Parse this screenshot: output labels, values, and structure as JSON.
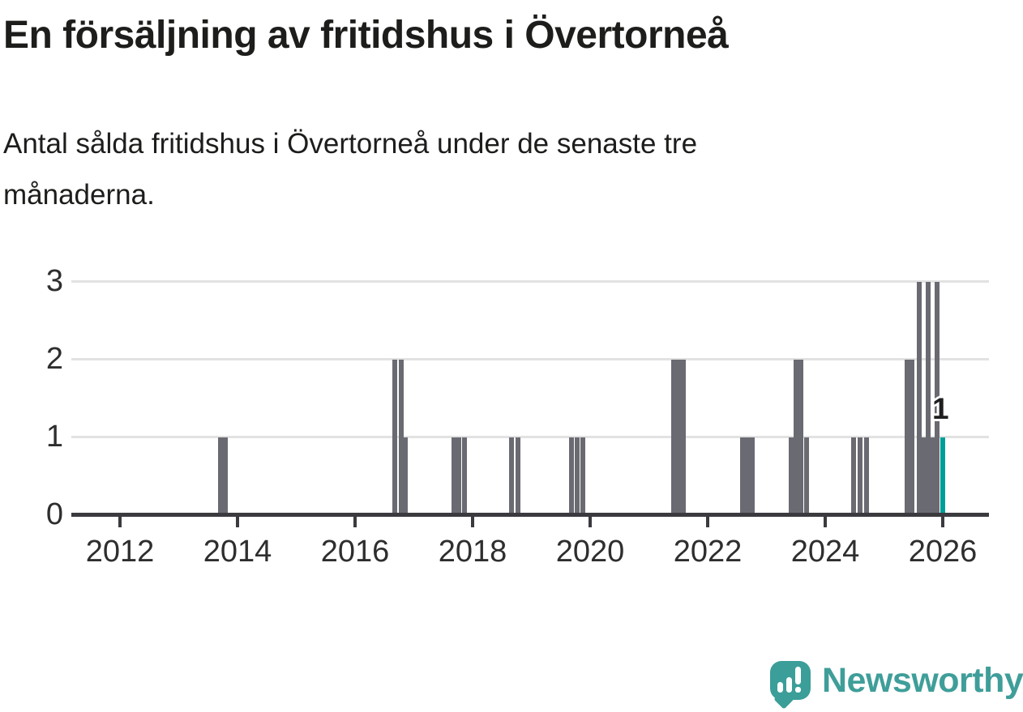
{
  "header": {
    "title": "En försäljning av fritidshus i Övertorneå",
    "subtitle": "Antal sålda fritidshus i Övertorneå under de senaste tre månaderna."
  },
  "chart_data": {
    "type": "bar",
    "title": "En försäljning av fritidshus i Övertorneå",
    "subtitle": "Antal sålda fritidshus i Övertorneå under de senaste tre månaderna.",
    "xlabel": "",
    "ylabel": "",
    "x_axis": {
      "range": [
        2011.17,
        2026.79
      ],
      "tick_labels": [
        "2012",
        "2014",
        "2016",
        "2018",
        "2020",
        "2022",
        "2024",
        "2026"
      ],
      "tick_values": [
        2012,
        2014,
        2016,
        2018,
        2020,
        2022,
        2024,
        2026
      ]
    },
    "y_axis": {
      "range": [
        0,
        3
      ],
      "tick_labels": [
        "0",
        "1",
        "2",
        "3"
      ],
      "tick_values": [
        0,
        1,
        2,
        3
      ],
      "gridline_values": [
        1,
        2,
        3
      ]
    },
    "grid": "horizontal-only",
    "legend": "none",
    "bar_color": "#6a6a72",
    "highlight_color": "#009e98",
    "bars": [
      {
        "x": 2013.71,
        "v": 1
      },
      {
        "x": 2013.8,
        "v": 1
      },
      {
        "x": 2016.68,
        "v": 2
      },
      {
        "x": 2016.78,
        "v": 2
      },
      {
        "x": 2016.86,
        "v": 1
      },
      {
        "x": 2017.68,
        "v": 1
      },
      {
        "x": 2017.77,
        "v": 1
      },
      {
        "x": 2017.86,
        "v": 1
      },
      {
        "x": 2018.66,
        "v": 1
      },
      {
        "x": 2018.77,
        "v": 1
      },
      {
        "x": 2019.68,
        "v": 1
      },
      {
        "x": 2019.78,
        "v": 1
      },
      {
        "x": 2019.87,
        "v": 1
      },
      {
        "x": 2021.42,
        "v": 2
      },
      {
        "x": 2021.51,
        "v": 2
      },
      {
        "x": 2021.59,
        "v": 2
      },
      {
        "x": 2022.59,
        "v": 1
      },
      {
        "x": 2022.68,
        "v": 1
      },
      {
        "x": 2022.76,
        "v": 1
      },
      {
        "x": 2023.42,
        "v": 1
      },
      {
        "x": 2023.51,
        "v": 2
      },
      {
        "x": 2023.59,
        "v": 2
      },
      {
        "x": 2023.68,
        "v": 1
      },
      {
        "x": 2024.48,
        "v": 1
      },
      {
        "x": 2024.59,
        "v": 1
      },
      {
        "x": 2024.7,
        "v": 1
      },
      {
        "x": 2025.39,
        "v": 2
      },
      {
        "x": 2025.47,
        "v": 2
      },
      {
        "x": 2025.6,
        "v": 3
      },
      {
        "x": 2025.68,
        "v": 1
      },
      {
        "x": 2025.75,
        "v": 3
      },
      {
        "x": 2025.83,
        "v": 1
      },
      {
        "x": 2025.9,
        "v": 3
      },
      {
        "x": 2026.0,
        "v": 1,
        "highlight": true,
        "label": "1"
      }
    ],
    "annotation": {
      "text": "1"
    }
  },
  "footer": {
    "brand": "Newsworthy"
  }
}
